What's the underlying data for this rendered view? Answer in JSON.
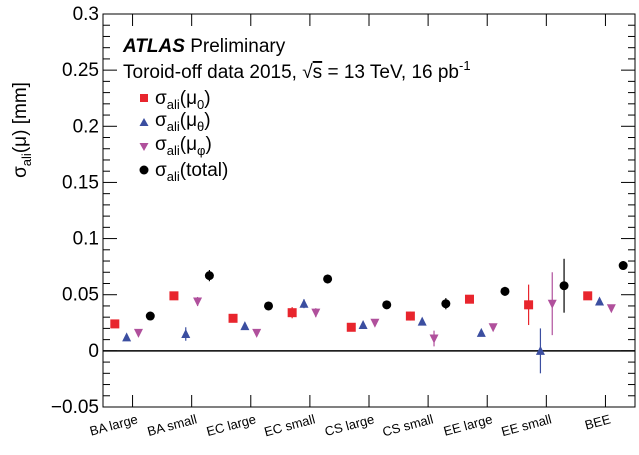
{
  "chart_data": {
    "type": "scatter",
    "ylabel": "σ",
    "ylabel_sub": "ali",
    "ylabel_tail": "(μ) [mm]",
    "categories": [
      "BA large",
      "BA small",
      "EC large",
      "EC small",
      "CS large",
      "CS small",
      "EE large",
      "EE small",
      "BEE"
    ],
    "ylim": [
      -0.05,
      0.3
    ],
    "yticks": [
      "0.3",
      "0.25",
      "0.2",
      "0.15",
      "0.1",
      "0.05",
      "0",
      "−0.05"
    ],
    "ytick_values": [
      0.3,
      0.25,
      0.2,
      0.15,
      0.1,
      0.05,
      0,
      -0.05
    ],
    "grid": false,
    "zero_line": true,
    "annotation": {
      "brand": "ATLAS",
      "status": "Preliminary",
      "line2_a": "Toroid-off data 2015, ",
      "line2_sqrt": "√",
      "line2_s": "s",
      "line2_b": " = 13 TeV, 16 pb",
      "line2_sup": "-1"
    },
    "legend_position": "top-left",
    "series": [
      {
        "legend_main": "σ",
        "legend_sub": "ali",
        "legend_mid": "(μ",
        "legend_sub2": "0",
        "legend_tail": ")",
        "marker": "square",
        "color": "#e8252d",
        "offset": -0.3,
        "values": [
          0.024,
          0.049,
          0.029,
          0.034,
          0.021,
          0.031,
          0.046,
          0.041,
          0.049
        ],
        "errors": [
          0.002,
          0.003,
          0.003,
          0.005,
          0.002,
          0.004,
          0.003,
          0.018,
          0.003
        ]
      },
      {
        "legend_main": "σ",
        "legend_sub": "ali",
        "legend_mid": "(μ",
        "legend_sub2": "θ",
        "legend_tail": ")",
        "marker": "triangle-up",
        "color": "#3b4ea0",
        "offset": -0.1,
        "values": [
          0.012,
          0.015,
          0.022,
          0.042,
          0.023,
          0.026,
          0.016,
          0.0,
          0.044
        ],
        "errors": [
          0.002,
          0.006,
          0.002,
          0.004,
          0.003,
          0.003,
          0.002,
          0.02,
          0.003
        ]
      },
      {
        "legend_main": "σ",
        "legend_sub": "ali",
        "legend_mid": "(μ",
        "legend_sub2": "φ",
        "legend_tail": ")",
        "marker": "triangle-down",
        "color": "#b0509c",
        "offset": 0.1,
        "values": [
          0.016,
          0.044,
          0.016,
          0.034,
          0.025,
          0.011,
          0.021,
          0.042,
          0.038
        ],
        "errors": [
          0.002,
          0.004,
          0.002,
          0.004,
          0.002,
          0.007,
          0.002,
          0.028,
          0.003
        ]
      },
      {
        "legend_main": "σ",
        "legend_sub": "ali",
        "legend_mid": "(total)",
        "legend_sub2": "",
        "legend_tail": "",
        "marker": "circle",
        "color": "#000000",
        "offset": 0.3,
        "values": [
          0.031,
          0.067,
          0.04,
          0.064,
          0.041,
          0.042,
          0.053,
          0.058,
          0.076
        ],
        "errors": [
          0.002,
          0.005,
          0.002,
          0.004,
          0.003,
          0.005,
          0.004,
          0.024,
          0.004
        ]
      }
    ]
  }
}
